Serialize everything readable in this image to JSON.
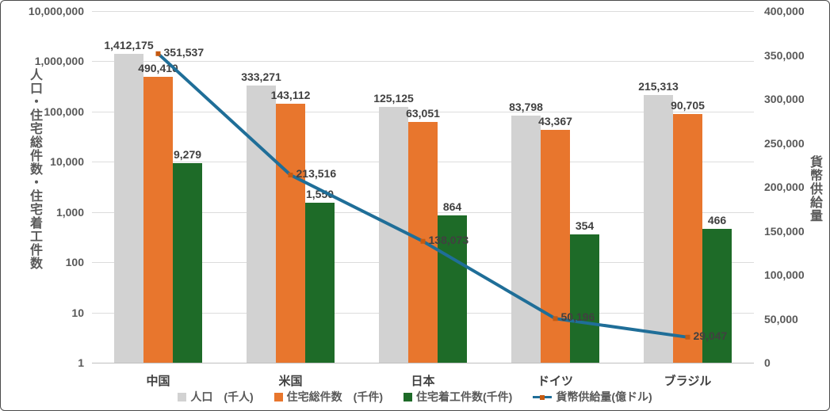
{
  "chart_data": {
    "type": "bar",
    "subtype": "combo-bar-line-dual-axis",
    "categories": [
      "中国",
      "米国",
      "日本",
      "ドイツ",
      "ブラジル"
    ],
    "bar_series": [
      {
        "key": "population",
        "name": "人口　(千人)",
        "color": "#d2d2d2",
        "values": [
          1412175,
          333271,
          125125,
          83798,
          215313
        ],
        "labels": [
          "1,412,175",
          "333,271",
          "125,125",
          "83,798",
          "215,313"
        ]
      },
      {
        "key": "total-housing-units",
        "name": "住宅総件数　(千件)",
        "color": "#e8762d",
        "values": [
          490410,
          143112,
          63051,
          43367,
          90705
        ],
        "labels": [
          "490,410",
          "143,112",
          "63,051",
          "43,367",
          "90,705"
        ]
      },
      {
        "key": "housing-starts",
        "name": "住宅着工件数(千件)",
        "color": "#1e6b28",
        "values": [
          9279,
          1550,
          864,
          354,
          466
        ],
        "labels": [
          "9,279",
          "1,550",
          "864",
          "354",
          "466"
        ]
      }
    ],
    "line_series": {
      "key": "money-supply",
      "name": "貨幣供給量(億ドル)",
      "color": "#1f6e98",
      "marker_color": "#c55a11",
      "values": [
        351537,
        213516,
        138073,
        50196,
        29047
      ],
      "labels": [
        "351,537",
        "213,516",
        "138,073",
        "50,196",
        "29,047"
      ]
    },
    "left_axis": {
      "title": "人口・住宅総件数・住宅着工件数",
      "scale": "log",
      "min": 1,
      "max": 10000000,
      "ticks": [
        "10,000,000",
        "1,000,000",
        "100,000",
        "10,000",
        "1,000",
        "100",
        "10",
        "1"
      ]
    },
    "right_axis": {
      "title": "貨幣供給量",
      "scale": "linear",
      "min": 0,
      "max": 400000,
      "ticks": [
        "400,000",
        "350,000",
        "300,000",
        "250,000",
        "200,000",
        "150,000",
        "100,000",
        "50,000",
        "0"
      ]
    },
    "grid": true,
    "legend_position": "bottom"
  }
}
